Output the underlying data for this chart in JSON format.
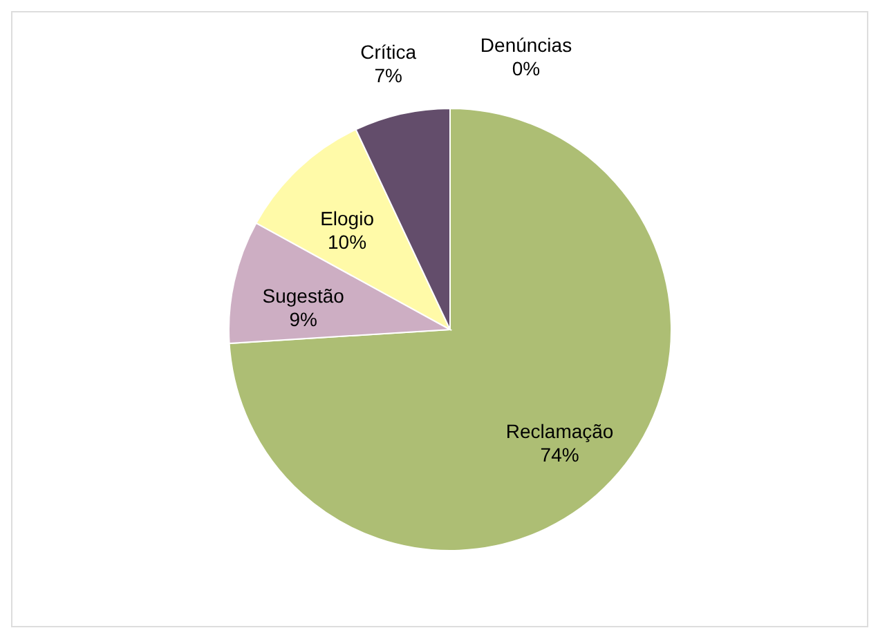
{
  "chart_data": {
    "type": "pie",
    "categories": [
      "Reclamação",
      "Sugestão",
      "Elogio",
      "Crítica",
      "Denúncias"
    ],
    "values": [
      74,
      9,
      10,
      7,
      0
    ],
    "value_labels": [
      "74%",
      "9%",
      "10%",
      "7%",
      "0%"
    ],
    "colors": [
      "#adbe74",
      "#cdaec3",
      "#fffaa8",
      "#634d6b",
      "#2e8b8b"
    ],
    "legend": false
  }
}
